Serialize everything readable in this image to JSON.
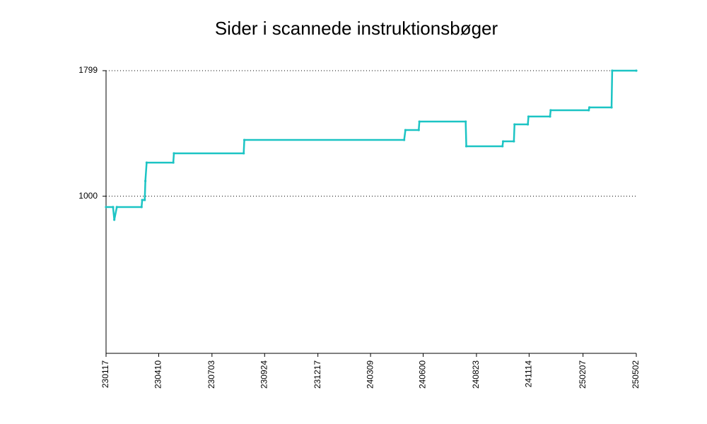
{
  "chart_data": {
    "type": "line",
    "title": "Sider i scannede instruktionsbøger",
    "x": [
      "2023-01-17",
      "2023-01-28",
      "2023-01-30",
      "2023-02-03",
      "2023-03-14",
      "2023-03-15",
      "2023-03-19",
      "2023-03-20",
      "2023-03-22",
      "2023-05-03",
      "2023-05-04",
      "2023-08-22",
      "2023-08-23",
      "2024-05-01",
      "2024-05-03",
      "2024-05-24",
      "2024-05-25",
      "2024-08-06",
      "2024-08-07",
      "2024-10-03",
      "2024-10-04",
      "2024-10-21",
      "2024-10-22",
      "2024-11-12",
      "2024-11-13",
      "2024-12-17",
      "2024-12-18",
      "2025-02-16",
      "2025-02-17",
      "2025-03-24",
      "2025-03-25",
      "2025-05-02"
    ],
    "series": [
      {
        "color": "#1cc4c4",
        "values": [
          931,
          931,
          850,
          931,
          931,
          976,
          976,
          1097,
          1214,
          1214,
          1273,
          1273,
          1358,
          1358,
          1421,
          1421,
          1475,
          1475,
          1318,
          1318,
          1349,
          1349,
          1457,
          1457,
          1507,
          1507,
          1547,
          1547,
          1565,
          1565,
          1799,
          1799
        ]
      }
    ],
    "xlim": [
      "2023-01-17",
      "2025-05-02"
    ],
    "xticks": [
      {
        "value": "2023-01-17",
        "label": "230117"
      },
      {
        "value": "2023-04-10",
        "label": "230410"
      },
      {
        "value": "2023-07-03",
        "label": "230703"
      },
      {
        "value": "2023-09-24",
        "label": "230924"
      },
      {
        "value": "2023-12-17",
        "label": "231217"
      },
      {
        "value": "2024-03-09",
        "label": "240309"
      },
      {
        "value": "2024-05-31",
        "label": "240600"
      },
      {
        "value": "2024-08-23",
        "label": "240823"
      },
      {
        "value": "2024-11-14",
        "label": "241114"
      },
      {
        "value": "2025-02-07",
        "label": "250207"
      },
      {
        "value": "2025-05-02",
        "label": "250502"
      }
    ],
    "ylim": [
      0,
      1799
    ],
    "yticks": [
      1000,
      1799
    ],
    "grid": true
  }
}
